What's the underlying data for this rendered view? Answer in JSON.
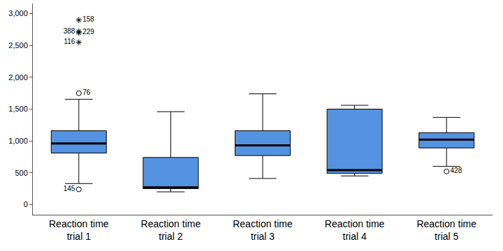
{
  "chart_data": {
    "type": "box",
    "categories": [
      "Reaction time trial 1",
      "Reaction time trial 2",
      "Reaction time trial 3",
      "Reaction time trial 4",
      "Reaction time trial 5"
    ],
    "whisker_low": [
      330,
      200,
      410,
      450,
      600
    ],
    "q1": [
      810,
      250,
      770,
      490,
      890
    ],
    "median": [
      960,
      270,
      930,
      540,
      1020
    ],
    "q3": [
      1160,
      740,
      1160,
      1500,
      1130
    ],
    "whisker_high": [
      1655,
      1460,
      1740,
      1560,
      1370
    ],
    "outliers": [
      [
        {
          "value": 2900,
          "label": "158",
          "marker": "star"
        },
        {
          "value": 2720,
          "label": "388",
          "marker": "star"
        },
        {
          "value": 2700,
          "label": "229",
          "marker": "star"
        },
        {
          "value": 2550,
          "label": "116",
          "marker": "star"
        },
        {
          "value": 1750,
          "label": "76",
          "marker": "circle"
        },
        {
          "value": 240,
          "label": "145",
          "marker": "circle"
        }
      ],
      [],
      [],
      [],
      [
        {
          "value": 520,
          "label": "428",
          "marker": "circle"
        }
      ]
    ],
    "color": "#5393e1",
    "ylim": [
      -160,
      3160
    ],
    "yticks": [
      0,
      500,
      {
        "value": 1000,
        "label": "1,000"
      },
      {
        "value": 1500,
        "label": "1,500"
      },
      {
        "value": 2000,
        "label": "2,000"
      },
      {
        "value": 2500,
        "label": "2,500"
      },
      {
        "value": 3000,
        "label": "3,000"
      }
    ],
    "grid": false
  }
}
